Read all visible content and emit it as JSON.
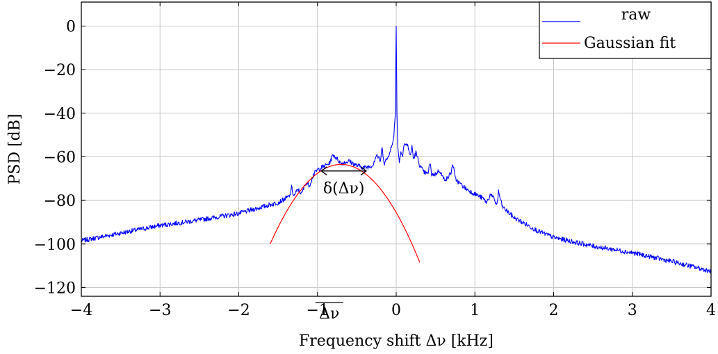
{
  "chart_data": {
    "type": "line",
    "title": "",
    "xlabel": "Frequency shift Δν [kHz]",
    "ylabel": "PSD [dB]",
    "xlim": [
      -4,
      4
    ],
    "ylim": [
      -124,
      11
    ],
    "grid": true,
    "legend_position": "top-right",
    "x_ticks": [
      -4,
      -3,
      -2,
      -1,
      0,
      1,
      2,
      3,
      4
    ],
    "x_tick_labels": [
      "−4",
      "−3",
      "−2",
      "−1",
      "0",
      "1",
      "2",
      "3",
      "4"
    ],
    "y_ticks": [
      0,
      -20,
      -40,
      -60,
      -80,
      -100,
      -120
    ],
    "y_tick_labels": [
      "0",
      "−20",
      "−40",
      "−60",
      "−80",
      "−100",
      "−120"
    ],
    "series": [
      {
        "name": "raw",
        "color": "#0000ff",
        "x": [
          -4.0,
          -3.5,
          -3.0,
          -2.5,
          -2.0,
          -1.7,
          -1.5,
          -1.35,
          -1.33,
          -1.3,
          -1.25,
          -1.2,
          -1.15,
          -1.1,
          -1.05,
          -1.0,
          -0.9,
          -0.85,
          -0.8,
          -0.7,
          -0.6,
          -0.5,
          -0.4,
          -0.3,
          -0.25,
          -0.2,
          -0.18,
          -0.15,
          -0.1,
          -0.08,
          -0.05,
          -0.03,
          -0.01,
          0.0,
          0.01,
          0.02,
          0.04,
          0.06,
          0.08,
          0.1,
          0.15,
          0.18,
          0.2,
          0.22,
          0.25,
          0.3,
          0.35,
          0.4,
          0.43,
          0.45,
          0.5,
          0.55,
          0.6,
          0.65,
          0.7,
          0.72,
          0.75,
          0.8,
          0.9,
          1.0,
          1.1,
          1.15,
          1.2,
          1.25,
          1.28,
          1.3,
          1.35,
          1.5,
          1.8,
          2.0,
          2.5,
          3.0,
          3.5,
          4.0
        ],
        "y": [
          -98.5,
          -95.0,
          -91.5,
          -89.0,
          -86.0,
          -83.0,
          -81.0,
          -78.0,
          -74.0,
          -78.0,
          -75.0,
          -77.0,
          -72.0,
          -73.0,
          -68.0,
          -66.0,
          -64.0,
          -63.0,
          -59.0,
          -63.0,
          -62.0,
          -64.0,
          -65.0,
          -64.0,
          -59.0,
          -62.0,
          -56.0,
          -63.0,
          -60.0,
          -57.0,
          -55.0,
          -50.0,
          -40.0,
          0.0,
          -40.0,
          -55.0,
          -62.0,
          -58.0,
          -59.0,
          -54.0,
          -55.0,
          -60.0,
          -55.0,
          -61.0,
          -58.0,
          -64.0,
          -67.0,
          -68.0,
          -63.0,
          -68.0,
          -68.0,
          -66.0,
          -70.0,
          -70.0,
          -67.0,
          -63.0,
          -70.0,
          -72.0,
          -75.0,
          -77.0,
          -79.0,
          -81.0,
          -77.0,
          -80.0,
          -82.0,
          -76.0,
          -83.0,
          -88.0,
          -94.0,
          -97.0,
          -101.0,
          -104.0,
          -108.0,
          -112.5
        ]
      },
      {
        "name": "Gaussian fit",
        "color": "#ff0000",
        "function": "gaussian_db",
        "center": -0.7,
        "peak": -63.5,
        "curvature": 45.0,
        "x_range": [
          -1.6,
          0.3
        ]
      }
    ],
    "annotations": [
      {
        "text": "δ(Δν)",
        "type": "double-arrow",
        "x_from": -0.95,
        "x_to": -0.38,
        "y": -66.5
      },
      {
        "text": "Δν",
        "type": "overline-tick-label",
        "x": -0.85
      }
    ]
  }
}
